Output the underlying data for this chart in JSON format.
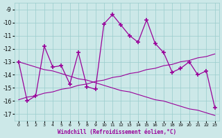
{
  "x": [
    0,
    1,
    2,
    3,
    4,
    5,
    6,
    7,
    8,
    9,
    10,
    11,
    12,
    13,
    14,
    15,
    16,
    17,
    18,
    19,
    20,
    21,
    22,
    23
  ],
  "y_main": [
    -13.0,
    -16.0,
    -15.6,
    -11.8,
    -13.4,
    -13.3,
    -14.7,
    -12.3,
    -14.9,
    -15.1,
    -10.1,
    -9.4,
    -10.2,
    -11.0,
    -11.5,
    -9.8,
    -11.6,
    -12.3,
    -13.8,
    -13.5,
    -13.0,
    -14.0,
    -13.7,
    -16.5
  ],
  "y_trend_dec": [
    -13.0,
    -13.2,
    -13.4,
    -13.6,
    -13.7,
    -13.9,
    -14.1,
    -14.3,
    -14.4,
    -14.6,
    -14.8,
    -15.0,
    -15.2,
    -15.3,
    -15.5,
    -15.7,
    -15.9,
    -16.0,
    -16.2,
    -16.4,
    -16.6,
    -16.7,
    -16.9,
    -17.1
  ],
  "y_trend_inc": [
    -15.9,
    -15.7,
    -15.6,
    -15.4,
    -15.3,
    -15.1,
    -15.0,
    -14.8,
    -14.7,
    -14.5,
    -14.4,
    -14.2,
    -14.1,
    -13.9,
    -13.8,
    -13.6,
    -13.5,
    -13.3,
    -13.2,
    -13.0,
    -12.9,
    -12.7,
    -12.6,
    -12.4
  ],
  "line_color": "#990099",
  "bg_color": "#cce8e8",
  "grid_color": "#99cccc",
  "xlabel": "Windchill (Refroidissement éolien,°C)",
  "ylim": [
    -17.5,
    -8.5
  ],
  "xlim": [
    -0.5,
    23.5
  ],
  "yticks": [
    -9,
    -10,
    -11,
    -12,
    -13,
    -14,
    -15,
    -16,
    -17
  ],
  "xticks": [
    0,
    1,
    2,
    3,
    4,
    5,
    6,
    7,
    8,
    9,
    10,
    11,
    12,
    13,
    14,
    15,
    16,
    17,
    18,
    19,
    20,
    21,
    22,
    23
  ]
}
